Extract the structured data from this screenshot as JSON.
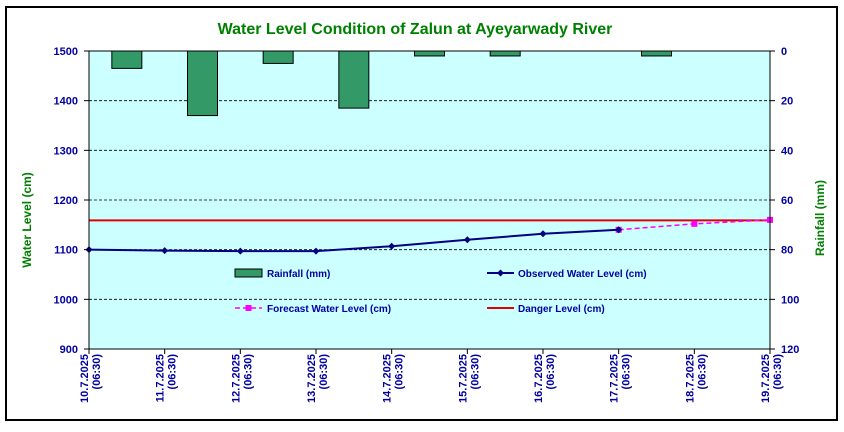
{
  "colors": {
    "plot_bg": "#ccffff",
    "rain_fill": "#339966",
    "observed": "#000080",
    "forecast": "#ff00ff",
    "danger": "#e00000",
    "title": "#008000",
    "axis_text": "#0000a0"
  },
  "chart_data": {
    "type": "line",
    "title": "Water Level Condition of Zalun at Ayeyarwady River",
    "ylabel": "Water Level (cm)",
    "y2label": "Rainfall (mm)",
    "ylim": [
      900,
      1500
    ],
    "yticks": [
      "900",
      "1000",
      "1100",
      "1200",
      "1300",
      "1400",
      "1500"
    ],
    "y2lim": [
      0,
      120
    ],
    "y2ticks": [
      "0",
      "20",
      "40",
      "60",
      "80",
      "100",
      "120"
    ],
    "y2_inverted": true,
    "categories": [
      "10.7.2025 (06:30)",
      "11.7.2025 (06:30)",
      "12.7.2025 (06:30)",
      "13.7.2025 (06:30)",
      "14.7.2025 (06:30)",
      "15.7.2025 (06:30)",
      "16.7.2025 (06:30)",
      "17.7.2025 (06:30)",
      "18.7.2025 (06:30)",
      "19.7.2025 (06:30)"
    ],
    "grid": true,
    "legend": {
      "rainfall": "Rainfall (mm)",
      "observed": "Observed Water Level (cm)",
      "forecast": "Forecast Water Level (cm)",
      "danger": "Danger Level (cm)"
    },
    "rainfall": [
      7,
      26,
      5,
      23,
      2,
      2,
      0,
      2,
      0
    ],
    "observed": [
      1100,
      1098,
      1097,
      1097,
      1107,
      1120,
      1132,
      1140
    ],
    "forecast": [
      null,
      null,
      null,
      null,
      null,
      null,
      null,
      1140,
      1152,
      1160
    ],
    "danger_level": 1159
  }
}
